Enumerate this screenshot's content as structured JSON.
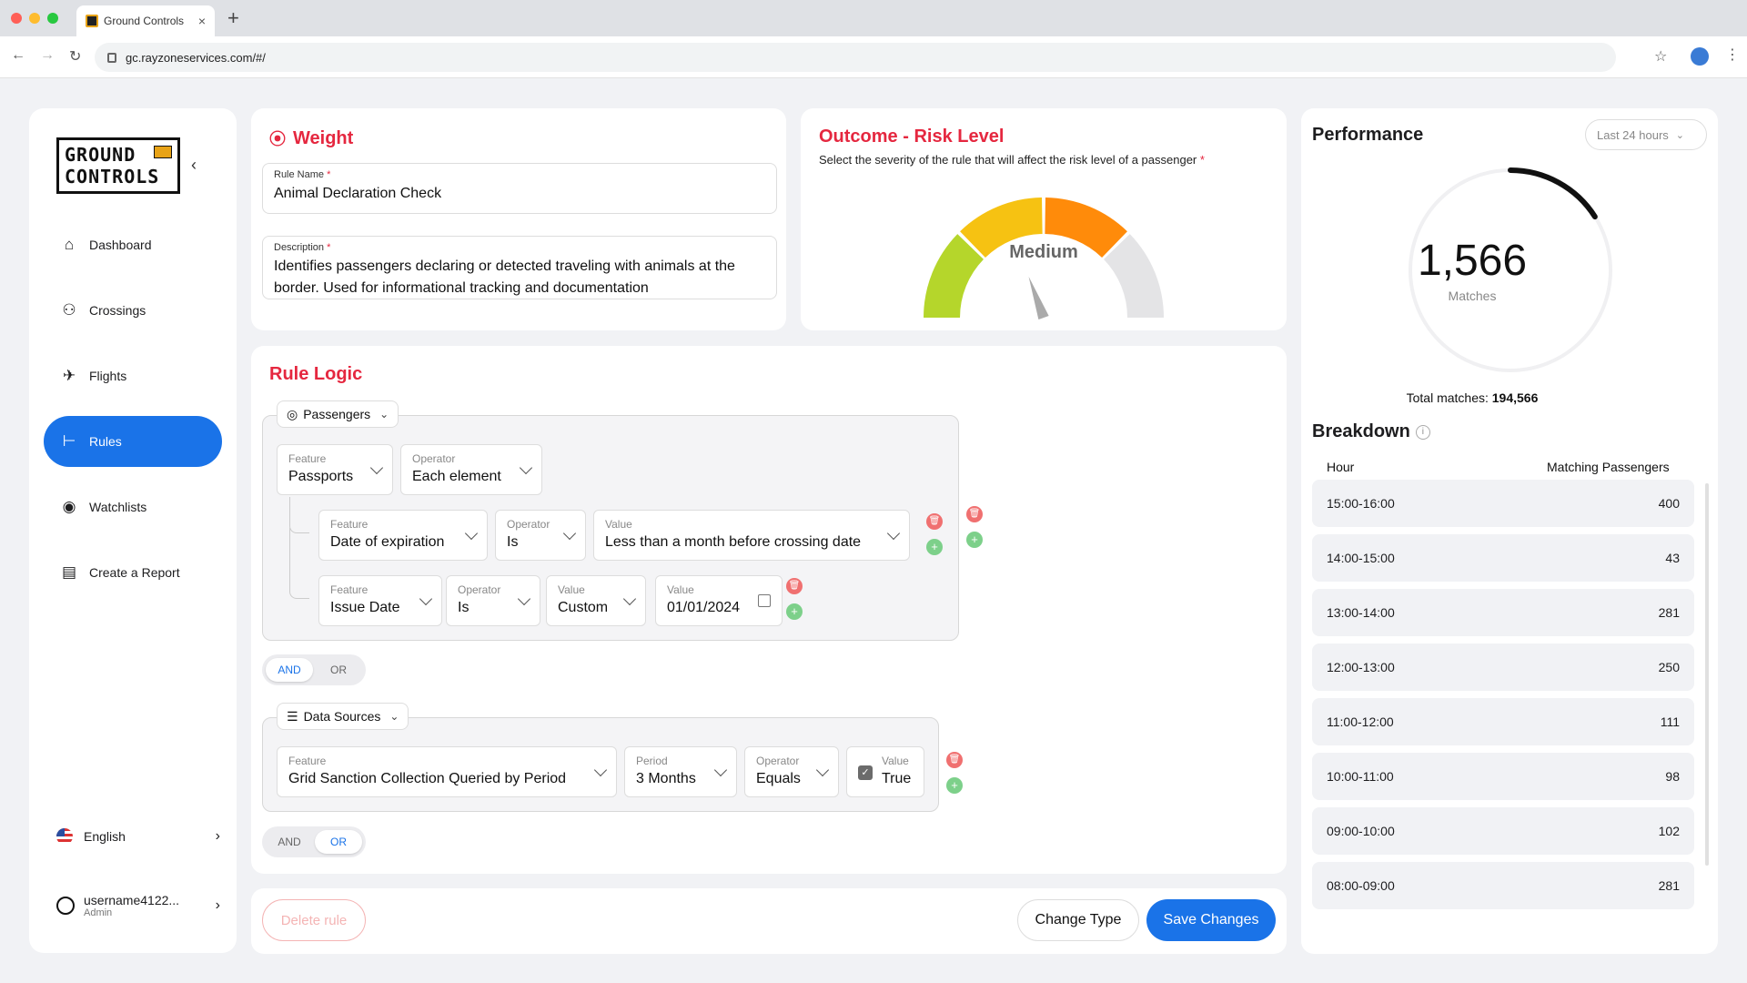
{
  "browser": {
    "tab_title": "Ground Controls",
    "tab_close": "×",
    "new_tab": "+",
    "url": "gc.rayzoneservices.com/#/"
  },
  "sidebar": {
    "logo_line1": "GROUND",
    "logo_line2": "CONTROLS",
    "logo_badge": "GC",
    "collapse": "‹",
    "items": [
      {
        "label": "Dashboard",
        "icon": "home-icon",
        "glyph": "⌂"
      },
      {
        "label": "Crossings",
        "icon": "people-icon",
        "glyph": "⚇"
      },
      {
        "label": "Flights",
        "icon": "plane-icon",
        "glyph": "✈"
      },
      {
        "label": "Rules",
        "icon": "rules-tree-icon",
        "glyph": "⊢"
      },
      {
        "label": "Watchlists",
        "icon": "eye-icon",
        "glyph": "◉"
      },
      {
        "label": "Create a Report",
        "icon": "document-icon",
        "glyph": "▤"
      }
    ],
    "language": "English",
    "username": "username4122...",
    "role": "Admin",
    "chevron": "›"
  },
  "weight": {
    "title": "Weight",
    "icon": "dumbbell-icon",
    "rule_name_label": "Rule Name",
    "rule_name_value": "Animal Declaration Check",
    "description_label": "Description",
    "description_value": "Identifies passengers declaring or detected traveling with animals at the border. Used for informational tracking and documentation",
    "required_mark": "*"
  },
  "outcome": {
    "title": "Outcome - Risk Level",
    "subtitle": "Select the severity of the rule that will affect the risk level of a passenger",
    "required_mark": "*",
    "gauge_label": "Medium",
    "gauge_level": 0.5,
    "colors": {
      "low": "#b5d62b",
      "medium_low": "#f6c212",
      "medium_high": "#ff8b0a",
      "high": "#e4e4e6"
    }
  },
  "rule_logic": {
    "title": "Rule Logic",
    "passengers_group": {
      "selector": "Passengers",
      "feature": {
        "label": "Feature",
        "value": "Passports"
      },
      "operator": {
        "label": "Operator",
        "value": "Each element"
      },
      "conditions": [
        [
          {
            "label": "Feature",
            "value": "Date of expiration"
          },
          {
            "label": "Operator",
            "value": "Is"
          },
          {
            "label": "Value",
            "value": "Less than a month before crossing date"
          }
        ],
        [
          {
            "label": "Feature",
            "value": "Issue Date"
          },
          {
            "label": "Operator",
            "value": "Is"
          },
          {
            "label": "Value",
            "value": "Custom"
          },
          {
            "label": "Value",
            "value": "01/01/2024"
          }
        ]
      ],
      "toggle": {
        "and": "AND",
        "or": "OR",
        "selected": "AND"
      }
    },
    "data_sources_group": {
      "selector": "Data Sources",
      "feature": {
        "label": "Feature",
        "value": "Grid Sanction Collection Queried by Period"
      },
      "period": {
        "label": "Period",
        "value": "3 Months"
      },
      "operator": {
        "label": "Operator",
        "value": "Equals"
      },
      "value": {
        "label": "Value",
        "value": "True",
        "checked": true
      },
      "toggle": {
        "and": "AND",
        "or": "OR",
        "selected": "OR"
      }
    },
    "add_symbol": "+",
    "delete_symbol": "🗑"
  },
  "actions": {
    "delete": "Delete rule",
    "change_type": "Change Type",
    "save": "Save Changes"
  },
  "performance": {
    "title": "Performance",
    "range": "Last 24 hours",
    "matches_value": "1,566",
    "matches_label": "Matches",
    "ring_fraction": 0.16,
    "total_label": "Total matches:",
    "total_value": "194,566",
    "breakdown_title": "Breakdown",
    "col_hour": "Hour",
    "col_matching": "Matching Passengers",
    "rows": [
      {
        "hour": "15:00-16:00",
        "value": "400"
      },
      {
        "hour": "14:00-15:00",
        "value": "43"
      },
      {
        "hour": "13:00-14:00",
        "value": "281"
      },
      {
        "hour": "12:00-13:00",
        "value": "250"
      },
      {
        "hour": "11:00-12:00",
        "value": "111"
      },
      {
        "hour": "10:00-11:00",
        "value": "98"
      },
      {
        "hour": "09:00-10:00",
        "value": "102"
      },
      {
        "hour": "08:00-09:00",
        "value": "281"
      }
    ]
  }
}
